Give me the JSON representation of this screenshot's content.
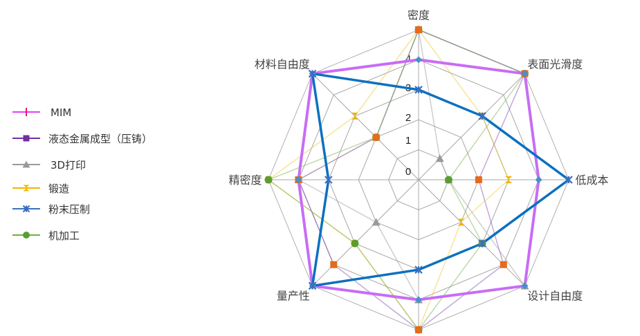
{
  "chart_data": {
    "type": "radar",
    "categories": [
      "密度",
      "表面光滑度",
      "低成本",
      "设计自由度",
      "",
      "量产性",
      "精密度",
      "材料自由度"
    ],
    "range": [
      0,
      5
    ],
    "ticks": [
      "0",
      "1",
      "2",
      "3",
      "4"
    ],
    "grid": true,
    "legend_position": "left",
    "series": [
      {
        "name": "MIM",
        "values": [
          4,
          5,
          4,
          5,
          4,
          5,
          4,
          5
        ],
        "color": "#c86cf5",
        "marker": "diamond",
        "marker_color": "#4a8fcc"
      },
      {
        "name": "液态金属成型（压铸）",
        "values": [
          5,
          5,
          2,
          4,
          5,
          4,
          4,
          2
        ],
        "color": "#7a3db0",
        "marker": "square",
        "marker_color": "#e46c1a"
      },
      {
        "name": "3D打印",
        "values": [
          5,
          1,
          1,
          5,
          4,
          2,
          4,
          2
        ],
        "color": "#9e9e9e",
        "marker": "triangle",
        "marker_color": "#9a9a9a"
      },
      {
        "name": "锻造",
        "values": [
          5,
          3,
          3,
          2,
          5,
          3,
          5,
          3
        ],
        "color": "#f0c020",
        "marker": "hourglass",
        "marker_color": "#f0b400"
      },
      {
        "name": "粉末压制",
        "values": [
          3,
          3,
          5,
          3,
          3,
          5,
          3,
          5
        ],
        "color": "#0a70c0",
        "marker": "star",
        "marker_color": "#3a6fc0"
      },
      {
        "name": "机加工",
        "values": [
          5,
          5,
          1,
          3,
          5,
          3,
          5,
          2
        ],
        "color": "#70ad47",
        "marker": "circle",
        "marker_color": "#5a9e32"
      }
    ]
  }
}
